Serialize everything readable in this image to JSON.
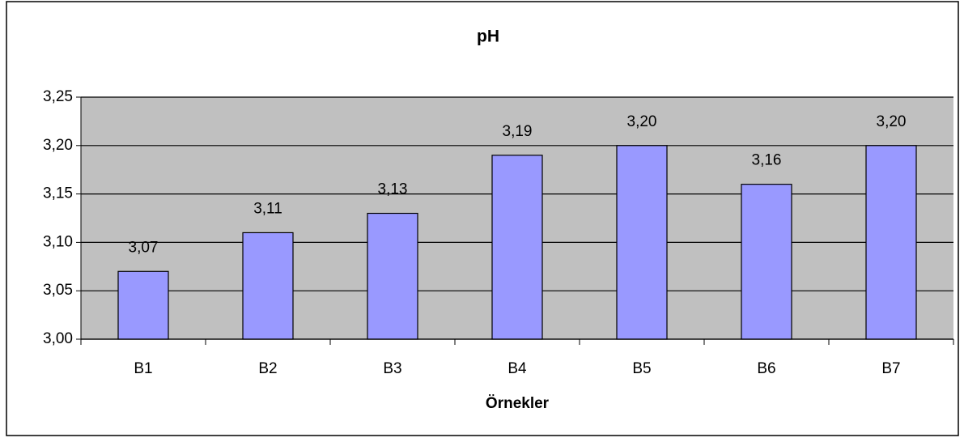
{
  "chart_data": {
    "type": "bar",
    "title": "pH",
    "x_label": "Örnekler",
    "categories": [
      "B1",
      "B2",
      "B3",
      "B4",
      "B5",
      "B6",
      "B7"
    ],
    "values": [
      3.07,
      3.11,
      3.13,
      3.19,
      3.2,
      3.16,
      3.2
    ],
    "value_labels": [
      "3,07",
      "3,11",
      "3,13",
      "3,19",
      "3,20",
      "3,16",
      "3,20"
    ],
    "color": "#9999ff",
    "ylim": [
      3.0,
      3.25
    ],
    "yticks": [
      {
        "value": 3.0,
        "label": "3,00"
      },
      {
        "value": 3.05,
        "label": "3,05"
      },
      {
        "value": 3.1,
        "label": "3,10"
      },
      {
        "value": 3.15,
        "label": "3,15"
      },
      {
        "value": 3.2,
        "label": "3,20"
      },
      {
        "value": 3.25,
        "label": "3,25"
      }
    ],
    "grid": true
  }
}
